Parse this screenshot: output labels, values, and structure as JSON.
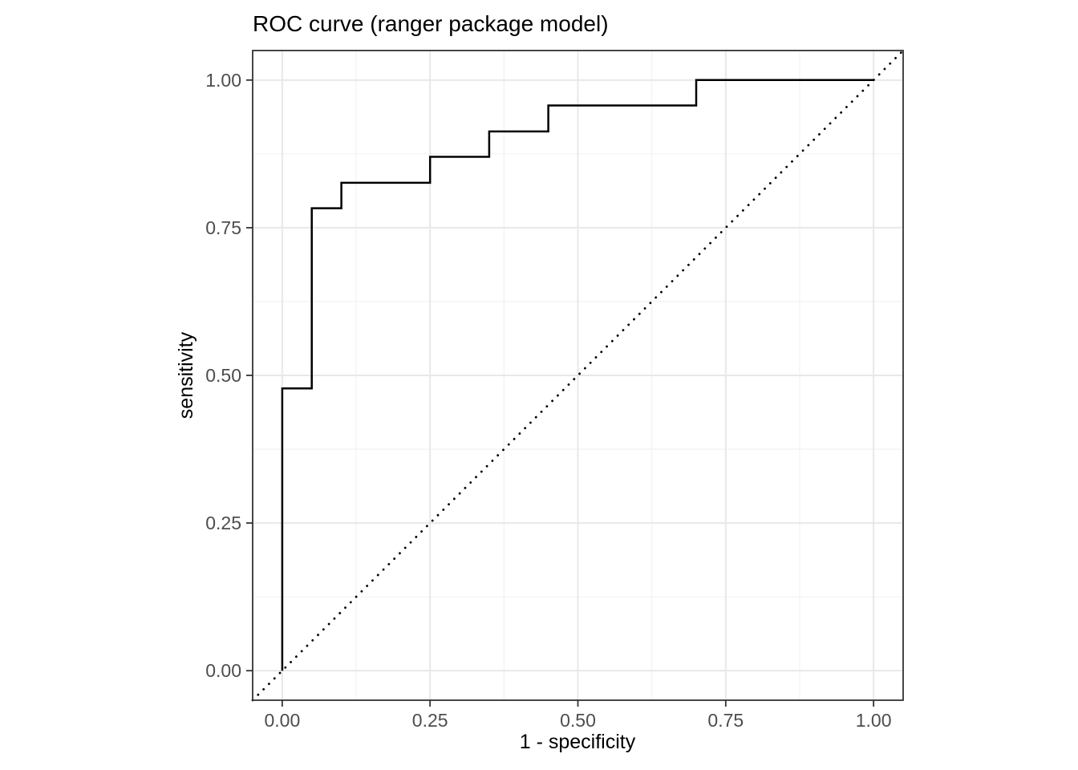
{
  "chart_data": {
    "type": "line",
    "title": "ROC curve (ranger package model)",
    "xlabel": "1 - specificity",
    "ylabel": "sensitivity",
    "xlim": [
      -0.05,
      1.05
    ],
    "ylim": [
      -0.05,
      1.05
    ],
    "x_ticks": [
      0.0,
      0.25,
      0.5,
      0.75,
      1.0
    ],
    "y_ticks": [
      0.0,
      0.25,
      0.5,
      0.75,
      1.0
    ],
    "x_tick_labels": [
      "0.00",
      "0.25",
      "0.50",
      "0.75",
      "1.00"
    ],
    "y_tick_labels": [
      "0.00",
      "0.25",
      "0.50",
      "0.75",
      "1.00"
    ],
    "x_minor_breaks": [
      0.125,
      0.375,
      0.625,
      0.875
    ],
    "y_minor_breaks": [
      0.125,
      0.375,
      0.625,
      0.875
    ],
    "grid": true,
    "legend_position": "none",
    "series": [
      {
        "name": "roc-curve",
        "style": "solid",
        "color": "#000000",
        "points": [
          [
            0.0,
            0.0
          ],
          [
            0.0,
            0.478
          ],
          [
            0.05,
            0.478
          ],
          [
            0.05,
            0.783
          ],
          [
            0.1,
            0.783
          ],
          [
            0.1,
            0.826
          ],
          [
            0.25,
            0.826
          ],
          [
            0.25,
            0.87
          ],
          [
            0.35,
            0.87
          ],
          [
            0.35,
            0.913
          ],
          [
            0.45,
            0.913
          ],
          [
            0.45,
            0.957
          ],
          [
            0.7,
            0.957
          ],
          [
            0.7,
            1.0
          ],
          [
            1.0,
            1.0
          ]
        ]
      },
      {
        "name": "chance-diagonal",
        "style": "dotted",
        "color": "#000000",
        "points": [
          [
            -0.05,
            -0.05
          ],
          [
            1.05,
            1.05
          ]
        ]
      }
    ],
    "colors": {
      "panel_background": "#ffffff",
      "panel_border": "#333333",
      "grid_major": "#e8e8e8",
      "grid_minor": "#f1f1f1",
      "tick": "#333333",
      "tick_label": "#4d4d4d",
      "title": "#000000",
      "axis_title": "#000000"
    }
  }
}
